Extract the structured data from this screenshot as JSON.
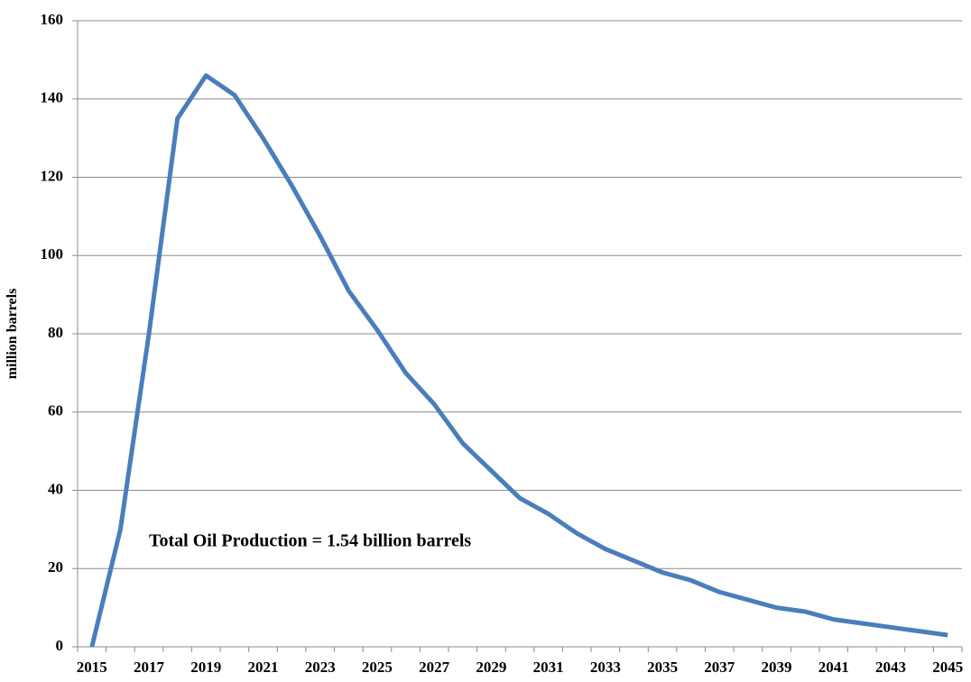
{
  "chart_data": {
    "type": "line",
    "y_label": "million barrels",
    "annotation": "Total Oil Production = 1.54 billion barrels",
    "categories": [
      "2015",
      null,
      "2017",
      null,
      "2019",
      null,
      "2021",
      null,
      "2023",
      null,
      "2025",
      null,
      "2027",
      null,
      "2029",
      null,
      "2031",
      null,
      "2033",
      null,
      "2035",
      null,
      "2037",
      null,
      "2039",
      null,
      "2041",
      null,
      "2043",
      null,
      "2045"
    ],
    "series": [
      {
        "name": "Oil production",
        "color": "#4a7ebb",
        "values": [
          0,
          30,
          80,
          135,
          146,
          141,
          130,
          118,
          105,
          91,
          81,
          70,
          62,
          52,
          45,
          38,
          34,
          29,
          25,
          22,
          19,
          17,
          14,
          12,
          10,
          9,
          7,
          6,
          5,
          4,
          3
        ]
      }
    ],
    "ylim": [
      0,
      160
    ],
    "yticks": [
      0,
      20,
      40,
      60,
      80,
      100,
      120,
      140,
      160
    ],
    "grid": true
  }
}
